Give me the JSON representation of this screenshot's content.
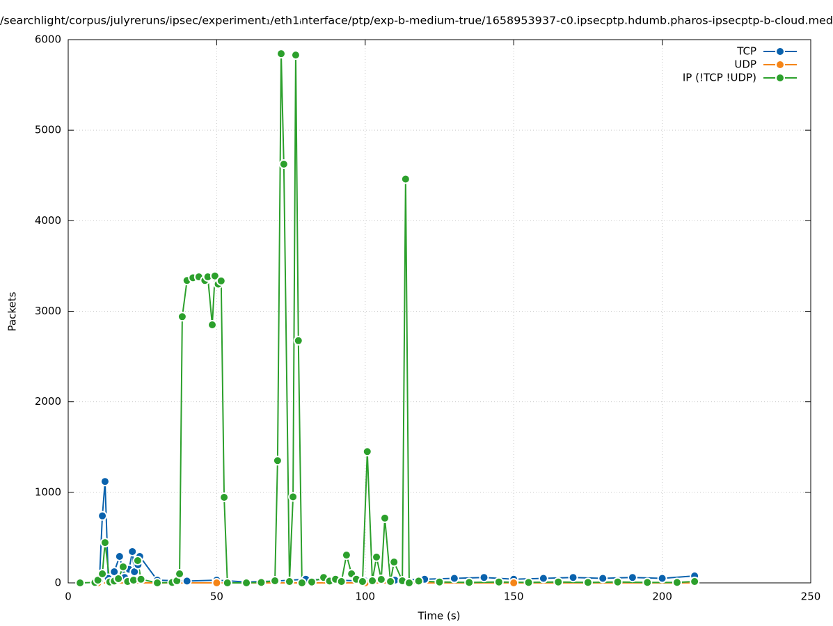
{
  "chart_data": {
    "type": "line",
    "title": "/searchlight/corpus/julyreruns/ipsec/experiment₁/eth1ᵢnterface/ptp/exp-b-medium-true/1658953937-c0.ipsecptp.hdumb.pharos-ipsecptp-b-cloud.med",
    "x_label": "Time (s)",
    "y_label": "Packets",
    "xlim": [
      0,
      250
    ],
    "xticks": [
      0,
      50,
      100,
      150,
      200,
      250
    ],
    "ylim": [
      0,
      6000
    ],
    "yticks": [
      0,
      1000,
      2000,
      3000,
      4000,
      5000,
      6000
    ],
    "grid": true,
    "legend": "top-right",
    "series": [
      {
        "name": "TCP",
        "color": "#0a62ad",
        "x": [
          9,
          10.5,
          11.5,
          12.4,
          13.5,
          15.5,
          17.3,
          19,
          20.5,
          21.6,
          22.3,
          23.5,
          24.1,
          30,
          40,
          50,
          60,
          70,
          80,
          90,
          100,
          110,
          120,
          130,
          140,
          150,
          160,
          170,
          180,
          190,
          200,
          210.9
        ],
        "values": [
          0,
          20,
          740,
          1120,
          50,
          123,
          292,
          60,
          150,
          346,
          123,
          200,
          292,
          30,
          20,
          30,
          10,
          20,
          40,
          30,
          20,
          30,
          40,
          50,
          60,
          40,
          50,
          60,
          50,
          60,
          50,
          77
        ]
      },
      {
        "name": "UDP",
        "color": "#f58518",
        "x": [
          10,
          50,
          100,
          150,
          210.9
        ],
        "values": [
          0,
          0,
          0,
          0,
          0
        ]
      },
      {
        "name": "IP (!TCP  !UDP)",
        "color": "#2ca02c",
        "x": [
          4,
          9,
          10,
          11.5,
          12.4,
          14,
          15.5,
          16.9,
          18.5,
          20,
          22,
          23.4,
          24.5,
          30,
          35,
          36.6,
          37.5,
          38.4,
          40,
          42,
          44,
          46,
          47,
          48.5,
          49.4,
          50.5,
          51.5,
          52.5,
          53.6,
          60,
          65,
          69.6,
          70.5,
          71.7,
          72.6,
          74.5,
          75.7,
          76.6,
          77.5,
          78.7,
          82,
          86,
          88,
          90,
          92,
          93.7,
          95.4,
          97,
          99.1,
          100.7,
          102.4,
          103.8,
          105.4,
          106.6,
          108.5,
          109.7,
          112.5,
          113.6,
          114.8,
          118,
          125,
          135,
          145,
          155,
          165,
          175,
          185,
          195,
          205,
          210.9
        ],
        "values": [
          0,
          5,
          30,
          100,
          445,
          10,
          20,
          46,
          177,
          15,
          30,
          246,
          40,
          0,
          5,
          23,
          100,
          2940,
          3340,
          3370,
          3380,
          3340,
          3380,
          2850,
          3390,
          3300,
          3335,
          945,
          0,
          0,
          5,
          23,
          1350,
          5845,
          4625,
          15,
          950,
          5830,
          2675,
          0,
          10,
          60,
          20,
          40,
          15,
          307,
          100,
          40,
          15,
          1450,
          23,
          285,
          38,
          715,
          15,
          230,
          23,
          4460,
          0,
          20,
          10,
          5,
          10,
          5,
          10,
          5,
          10,
          5,
          5,
          15
        ]
      }
    ]
  }
}
